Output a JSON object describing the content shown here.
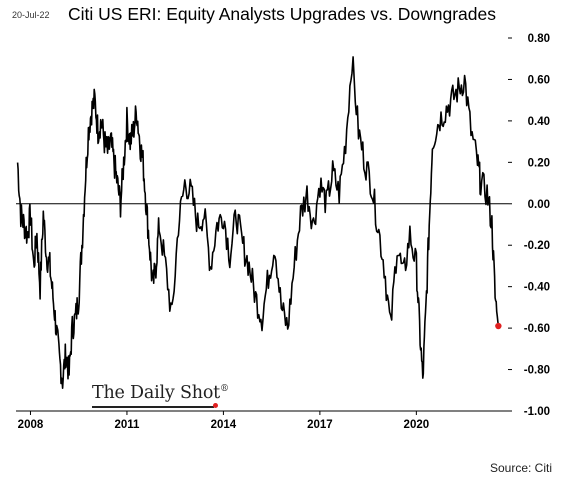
{
  "header": {
    "date": "20-Jul-22"
  },
  "footer": {
    "source": "Source: Citi",
    "watermark": "The Daily Shot",
    "watermark_mark": "®"
  },
  "colors": {
    "line": "#000000",
    "last_point": "#e02020",
    "zero_line": "#000000",
    "axis": "#000000"
  },
  "chart_data": {
    "type": "line",
    "title": "Citi US ERI: Equity Analysts Upgrades vs. Downgrades",
    "xlabel": "",
    "ylabel": "",
    "x_ticks": [
      2008,
      2011,
      2014,
      2017,
      2020
    ],
    "y_ticks": [
      0.8,
      0.6,
      0.4,
      0.2,
      0.0,
      -0.2,
      -0.4,
      -0.6,
      -0.8,
      -1.0
    ],
    "y_tick_labels": [
      "0.80",
      "0.60",
      "0.40",
      "0.20",
      "0.00",
      "-0.20",
      "-0.40",
      "-0.60",
      "-0.80",
      "-1.00"
    ],
    "xlim": [
      2007.55,
      2022.85
    ],
    "ylim": [
      -1.0,
      0.8
    ],
    "y_axis_side": "right",
    "grid": false,
    "last_point": {
      "x": 2022.55,
      "y": -0.59
    },
    "series": [
      {
        "values": [
          [
            2007.6,
            0.2
          ],
          [
            2007.7,
            -0.05
          ],
          [
            2007.8,
            -0.1
          ],
          [
            2007.9,
            -0.15
          ],
          [
            2008.0,
            -0.05
          ],
          [
            2008.1,
            -0.3
          ],
          [
            2008.2,
            -0.15
          ],
          [
            2008.3,
            -0.4
          ],
          [
            2008.4,
            -0.05
          ],
          [
            2008.5,
            -0.25
          ],
          [
            2008.6,
            -0.3
          ],
          [
            2008.7,
            -0.45
          ],
          [
            2008.8,
            -0.6
          ],
          [
            2008.9,
            -0.75
          ],
          [
            2009.0,
            -0.85
          ],
          [
            2009.1,
            -0.72
          ],
          [
            2009.2,
            -0.82
          ],
          [
            2009.3,
            -0.6
          ],
          [
            2009.4,
            -0.55
          ],
          [
            2009.5,
            -0.45
          ],
          [
            2009.6,
            -0.2
          ],
          [
            2009.7,
            0.1
          ],
          [
            2009.8,
            0.35
          ],
          [
            2009.9,
            0.45
          ],
          [
            2010.0,
            0.5
          ],
          [
            2010.1,
            0.35
          ],
          [
            2010.2,
            0.4
          ],
          [
            2010.3,
            0.3
          ],
          [
            2010.4,
            0.25
          ],
          [
            2010.5,
            0.3
          ],
          [
            2010.6,
            0.2
          ],
          [
            2010.7,
            0.1
          ],
          [
            2010.8,
            0.0
          ],
          [
            2010.9,
            0.2
          ],
          [
            2011.0,
            0.4
          ],
          [
            2011.1,
            0.3
          ],
          [
            2011.2,
            0.35
          ],
          [
            2011.3,
            0.45
          ],
          [
            2011.4,
            0.3
          ],
          [
            2011.5,
            0.2
          ],
          [
            2011.6,
            0.0
          ],
          [
            2011.7,
            -0.2
          ],
          [
            2011.8,
            -0.4
          ],
          [
            2011.9,
            -0.3
          ],
          [
            2012.0,
            -0.1
          ],
          [
            2012.2,
            -0.3
          ],
          [
            2012.4,
            -0.55
          ],
          [
            2012.6,
            -0.1
          ],
          [
            2012.8,
            0.1
          ],
          [
            2013.0,
            0.05
          ],
          [
            2013.2,
            -0.1
          ],
          [
            2013.4,
            -0.05
          ],
          [
            2013.6,
            -0.3
          ],
          [
            2013.8,
            -0.1
          ],
          [
            2014.0,
            -0.05
          ],
          [
            2014.2,
            -0.25
          ],
          [
            2014.4,
            -0.05
          ],
          [
            2014.6,
            -0.2
          ],
          [
            2014.8,
            -0.3
          ],
          [
            2015.0,
            -0.45
          ],
          [
            2015.2,
            -0.55
          ],
          [
            2015.4,
            -0.35
          ],
          [
            2015.6,
            -0.2
          ],
          [
            2015.8,
            -0.5
          ],
          [
            2016.0,
            -0.6
          ],
          [
            2016.2,
            -0.3
          ],
          [
            2016.4,
            -0.05
          ],
          [
            2016.6,
            0.05
          ],
          [
            2016.8,
            -0.1
          ],
          [
            2017.0,
            0.1
          ],
          [
            2017.2,
            0.0
          ],
          [
            2017.4,
            0.15
          ],
          [
            2017.6,
            0.05
          ],
          [
            2017.8,
            0.3
          ],
          [
            2018.0,
            0.7
          ],
          [
            2018.2,
            0.35
          ],
          [
            2018.4,
            0.2
          ],
          [
            2018.6,
            0.1
          ],
          [
            2018.8,
            -0.1
          ],
          [
            2019.0,
            -0.3
          ],
          [
            2019.2,
            -0.6
          ],
          [
            2019.4,
            -0.2
          ],
          [
            2019.6,
            -0.35
          ],
          [
            2019.8,
            -0.15
          ],
          [
            2020.0,
            -0.3
          ],
          [
            2020.1,
            -0.6
          ],
          [
            2020.2,
            -0.85
          ],
          [
            2020.3,
            -0.5
          ],
          [
            2020.4,
            -0.1
          ],
          [
            2020.5,
            0.3
          ],
          [
            2020.7,
            0.4
          ],
          [
            2020.9,
            0.45
          ],
          [
            2021.1,
            0.5
          ],
          [
            2021.3,
            0.55
          ],
          [
            2021.5,
            0.6
          ],
          [
            2021.7,
            0.35
          ],
          [
            2021.9,
            0.2
          ],
          [
            2022.0,
            0.1
          ],
          [
            2022.2,
            0.05
          ],
          [
            2022.35,
            -0.1
          ],
          [
            2022.45,
            -0.45
          ],
          [
            2022.55,
            -0.59
          ]
        ]
      }
    ]
  }
}
